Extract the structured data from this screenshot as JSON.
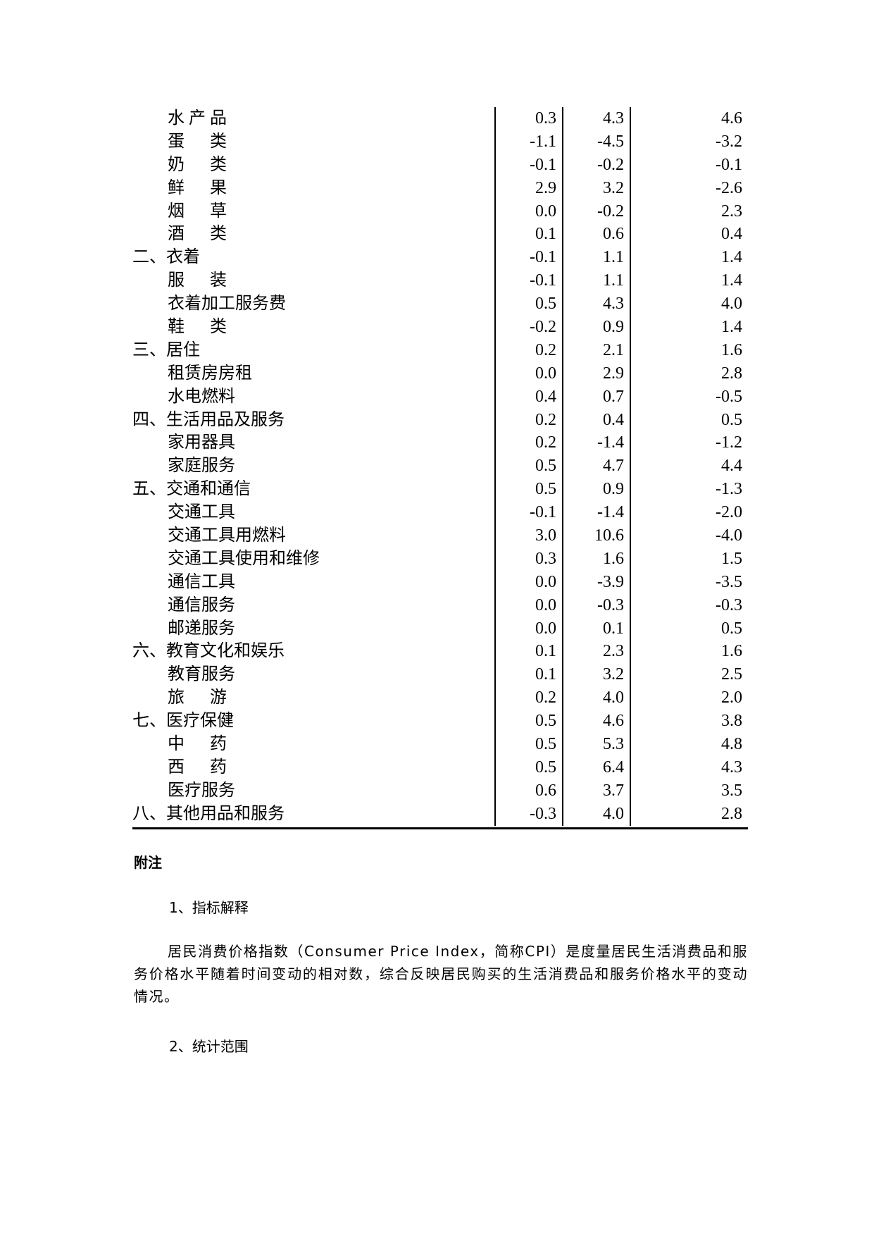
{
  "table": {
    "rows": [
      {
        "name": "水 产 品",
        "sub": true,
        "v": [
          "0.3",
          "4.3",
          "4.6"
        ]
      },
      {
        "name": "蛋      类",
        "sub": true,
        "v": [
          "-1.1",
          "-4.5",
          "-3.2"
        ]
      },
      {
        "name": "奶      类",
        "sub": true,
        "v": [
          "-0.1",
          "-0.2",
          "-0.1"
        ]
      },
      {
        "name": "鲜      果",
        "sub": true,
        "v": [
          "2.9",
          "3.2",
          "-2.6"
        ]
      },
      {
        "name": "烟      草",
        "sub": true,
        "v": [
          "0.0",
          "-0.2",
          "2.3"
        ]
      },
      {
        "name": "酒      类",
        "sub": true,
        "v": [
          "0.1",
          "0.6",
          "0.4"
        ]
      },
      {
        "name": "二、衣着",
        "sub": false,
        "v": [
          "-0.1",
          "1.1",
          "1.4"
        ]
      },
      {
        "name": "服      装",
        "sub": true,
        "v": [
          "-0.1",
          "1.1",
          "1.4"
        ]
      },
      {
        "name": "衣着加工服务费",
        "sub": true,
        "v": [
          "0.5",
          "4.3",
          "4.0"
        ]
      },
      {
        "name": "鞋      类",
        "sub": true,
        "v": [
          "-0.2",
          "0.9",
          "1.4"
        ]
      },
      {
        "name": "三、居住",
        "sub": false,
        "v": [
          "0.2",
          "2.1",
          "1.6"
        ]
      },
      {
        "name": "租赁房房租",
        "sub": true,
        "v": [
          "0.0",
          "2.9",
          "2.8"
        ]
      },
      {
        "name": "水电燃料",
        "sub": true,
        "v": [
          "0.4",
          "0.7",
          "-0.5"
        ]
      },
      {
        "name": "四、生活用品及服务",
        "sub": false,
        "v": [
          "0.2",
          "0.4",
          "0.5"
        ]
      },
      {
        "name": "家用器具",
        "sub": true,
        "v": [
          "0.2",
          "-1.4",
          "-1.2"
        ]
      },
      {
        "name": "家庭服务",
        "sub": true,
        "v": [
          "0.5",
          "4.7",
          "4.4"
        ]
      },
      {
        "name": "五、交通和通信",
        "sub": false,
        "v": [
          "0.5",
          "0.9",
          "-1.3"
        ]
      },
      {
        "name": "交通工具",
        "sub": true,
        "v": [
          "-0.1",
          "-1.4",
          "-2.0"
        ]
      },
      {
        "name": "交通工具用燃料",
        "sub": true,
        "v": [
          "3.0",
          "10.6",
          "-4.0"
        ]
      },
      {
        "name": "交通工具使用和维修",
        "sub": true,
        "v": [
          "0.3",
          "1.6",
          "1.5"
        ]
      },
      {
        "name": "通信工具",
        "sub": true,
        "v": [
          "0.0",
          "-3.9",
          "-3.5"
        ]
      },
      {
        "name": "通信服务",
        "sub": true,
        "v": [
          "0.0",
          "-0.3",
          "-0.3"
        ]
      },
      {
        "name": "邮递服务",
        "sub": true,
        "v": [
          "0.0",
          "0.1",
          "0.5"
        ]
      },
      {
        "name": "六、教育文化和娱乐",
        "sub": false,
        "v": [
          "0.1",
          "2.3",
          "1.6"
        ]
      },
      {
        "name": "教育服务",
        "sub": true,
        "v": [
          "0.1",
          "3.2",
          "2.5"
        ]
      },
      {
        "name": "旅      游",
        "sub": true,
        "v": [
          "0.2",
          "4.0",
          "2.0"
        ]
      },
      {
        "name": "七、医疗保健",
        "sub": false,
        "v": [
          "0.5",
          "4.6",
          "3.8"
        ]
      },
      {
        "name": "中      药",
        "sub": true,
        "v": [
          "0.5",
          "5.3",
          "4.8"
        ]
      },
      {
        "name": "西      药",
        "sub": true,
        "v": [
          "0.5",
          "6.4",
          "4.3"
        ]
      },
      {
        "name": "医疗服务",
        "sub": true,
        "v": [
          "0.6",
          "3.7",
          "3.5"
        ]
      },
      {
        "name": "八、其他用品和服务",
        "sub": false,
        "v": [
          "-0.3",
          "4.0",
          "2.8"
        ]
      }
    ]
  },
  "notes": {
    "title": "附注",
    "heading1": "1、指标解释",
    "paragraph1": "居民消费价格指数（Consumer Price Index，简称CPI）是度量居民生活消费品和服务价格水平随着时间变动的相对数，综合反映居民购买的生活消费品和服务价格水平的变动情况。",
    "heading2": "2、统计范围"
  }
}
